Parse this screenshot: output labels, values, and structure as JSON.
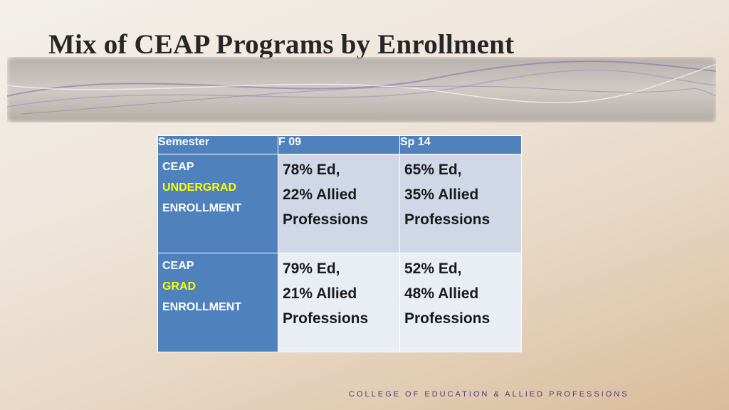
{
  "title": "Mix of CEAP Programs by Enrollment",
  "table": {
    "headers": [
      "Semester",
      "F 09",
      "Sp 14"
    ],
    "rows": [
      {
        "label": {
          "line1": "CEAP",
          "highlight": "UNDERGRAD",
          "line3": "ENROLLMENT"
        },
        "f09": [
          "78% Ed,",
          "22% Allied",
          "Professions"
        ],
        "sp14": [
          "65% Ed,",
          "35% Allied",
          "Professions"
        ]
      },
      {
        "label": {
          "line1": "CEAP",
          "highlight": "GRAD",
          "line3": "ENROLLMENT"
        },
        "f09": [
          "79% Ed,",
          "21% Allied",
          "Professions"
        ],
        "sp14": [
          "52% Ed,",
          "48% Allied",
          "Professions"
        ]
      }
    ]
  },
  "footer": "COLLEGE OF EDUCATION & ALLIED PROFESSIONS",
  "colors": {
    "header_blue": "#4f81bd",
    "highlight_yellow": "#ffff00",
    "row1_fill": "#d0d8e8",
    "row2_fill": "#e9edf4",
    "footer_purple": "#4b3a7a"
  }
}
